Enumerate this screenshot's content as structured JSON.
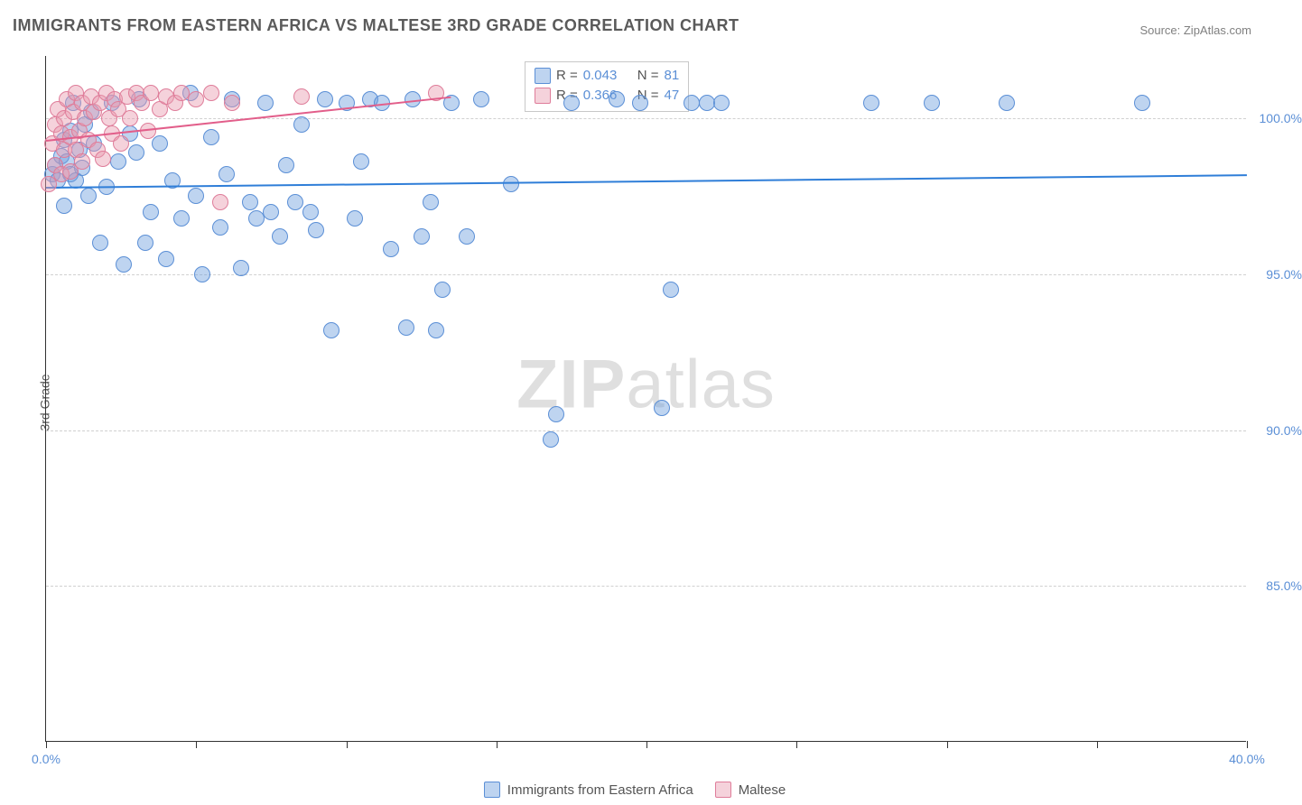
{
  "title": "IMMIGRANTS FROM EASTERN AFRICA VS MALTESE 3RD GRADE CORRELATION CHART",
  "source": "Source: ZipAtlas.com",
  "watermark_bold": "ZIP",
  "watermark_light": "atlas",
  "yaxis_title": "3rd Grade",
  "chart": {
    "type": "scatter",
    "xlim": [
      0,
      40
    ],
    "ylim": [
      80,
      102
    ],
    "x_ticks": [
      0,
      5,
      10,
      15,
      20,
      25,
      30,
      35,
      40
    ],
    "x_tick_labels": {
      "0": "0.0%",
      "40": "40.0%"
    },
    "y_gridlines": [
      85,
      90,
      95,
      100
    ],
    "y_tick_labels": {
      "85": "85.0%",
      "90": "90.0%",
      "95": "95.0%",
      "100": "100.0%"
    },
    "background_color": "#ffffff",
    "grid_color": "#d0d0d0",
    "axis_color": "#333333",
    "label_color": "#5b8fd6",
    "label_fontsize": 14,
    "marker_radius": 9,
    "marker_opacity": 0.55,
    "series": [
      {
        "name": "Immigrants from Eastern Africa",
        "color": "#6fa0de",
        "fill": "rgba(111,160,222,0.45)",
        "stroke": "#5b8fd6",
        "r": 0.043,
        "n": 81,
        "trend": {
          "x1": 0,
          "y1": 97.8,
          "x2": 40,
          "y2": 98.2,
          "color": "#2f7ed8",
          "width": 2
        },
        "points": [
          [
            0.2,
            98.2
          ],
          [
            0.3,
            98.5
          ],
          [
            0.4,
            98.0
          ],
          [
            0.5,
            98.8
          ],
          [
            0.6,
            99.3
          ],
          [
            0.6,
            97.2
          ],
          [
            0.7,
            98.6
          ],
          [
            0.8,
            98.2
          ],
          [
            0.8,
            99.6
          ],
          [
            0.9,
            100.5
          ],
          [
            1.0,
            98.0
          ],
          [
            1.1,
            99.0
          ],
          [
            1.2,
            98.4
          ],
          [
            1.3,
            99.8
          ],
          [
            1.4,
            97.5
          ],
          [
            1.5,
            100.2
          ],
          [
            1.6,
            99.2
          ],
          [
            1.8,
            96.0
          ],
          [
            2.0,
            97.8
          ],
          [
            2.2,
            100.5
          ],
          [
            2.4,
            98.6
          ],
          [
            2.6,
            95.3
          ],
          [
            2.8,
            99.5
          ],
          [
            3.0,
            98.9
          ],
          [
            3.1,
            100.6
          ],
          [
            3.3,
            96.0
          ],
          [
            3.5,
            97.0
          ],
          [
            3.8,
            99.2
          ],
          [
            4.0,
            95.5
          ],
          [
            4.2,
            98.0
          ],
          [
            4.5,
            96.8
          ],
          [
            4.8,
            100.8
          ],
          [
            5.0,
            97.5
          ],
          [
            5.2,
            95.0
          ],
          [
            5.5,
            99.4
          ],
          [
            5.8,
            96.5
          ],
          [
            6.0,
            98.2
          ],
          [
            6.2,
            100.6
          ],
          [
            6.5,
            95.2
          ],
          [
            6.8,
            97.3
          ],
          [
            7.0,
            96.8
          ],
          [
            7.3,
            100.5
          ],
          [
            7.5,
            97.0
          ],
          [
            7.8,
            96.2
          ],
          [
            8.0,
            98.5
          ],
          [
            8.3,
            97.3
          ],
          [
            8.5,
            99.8
          ],
          [
            8.8,
            97.0
          ],
          [
            9.0,
            96.4
          ],
          [
            9.3,
            100.6
          ],
          [
            9.5,
            93.2
          ],
          [
            10.0,
            100.5
          ],
          [
            10.3,
            96.8
          ],
          [
            10.5,
            98.6
          ],
          [
            10.8,
            100.6
          ],
          [
            11.2,
            100.5
          ],
          [
            11.5,
            95.8
          ],
          [
            12.0,
            93.3
          ],
          [
            12.2,
            100.6
          ],
          [
            12.5,
            96.2
          ],
          [
            12.8,
            97.3
          ],
          [
            13.0,
            93.2
          ],
          [
            13.2,
            94.5
          ],
          [
            13.5,
            100.5
          ],
          [
            14.0,
            96.2
          ],
          [
            14.5,
            100.6
          ],
          [
            15.5,
            97.9
          ],
          [
            16.8,
            89.7
          ],
          [
            17.0,
            90.5
          ],
          [
            17.5,
            100.5
          ],
          [
            19.0,
            100.6
          ],
          [
            19.8,
            100.5
          ],
          [
            20.5,
            90.7
          ],
          [
            20.8,
            94.5
          ],
          [
            21.5,
            100.5
          ],
          [
            22.0,
            100.5
          ],
          [
            22.5,
            100.5
          ],
          [
            27.5,
            100.5
          ],
          [
            29.5,
            100.5
          ],
          [
            32.0,
            100.5
          ],
          [
            36.5,
            100.5
          ]
        ]
      },
      {
        "name": "Maltese",
        "color": "#e89bb0",
        "fill": "rgba(232,155,176,0.45)",
        "stroke": "#df7d9a",
        "r": 0.366,
        "n": 47,
        "trend": {
          "x1": 0,
          "y1": 99.3,
          "x2": 13.5,
          "y2": 100.7,
          "color": "#e25e8a",
          "width": 2
        },
        "points": [
          [
            0.1,
            97.9
          ],
          [
            0.2,
            99.2
          ],
          [
            0.3,
            99.8
          ],
          [
            0.3,
            98.5
          ],
          [
            0.4,
            100.3
          ],
          [
            0.5,
            99.5
          ],
          [
            0.5,
            98.2
          ],
          [
            0.6,
            100.0
          ],
          [
            0.6,
            99.0
          ],
          [
            0.7,
            100.6
          ],
          [
            0.8,
            99.4
          ],
          [
            0.8,
            98.3
          ],
          [
            0.9,
            100.2
          ],
          [
            1.0,
            99.0
          ],
          [
            1.0,
            100.8
          ],
          [
            1.1,
            99.6
          ],
          [
            1.2,
            100.5
          ],
          [
            1.2,
            98.6
          ],
          [
            1.3,
            100.0
          ],
          [
            1.4,
            99.3
          ],
          [
            1.5,
            100.7
          ],
          [
            1.6,
            100.2
          ],
          [
            1.7,
            99.0
          ],
          [
            1.8,
            100.5
          ],
          [
            1.9,
            98.7
          ],
          [
            2.0,
            100.8
          ],
          [
            2.1,
            100.0
          ],
          [
            2.2,
            99.5
          ],
          [
            2.3,
            100.6
          ],
          [
            2.4,
            100.3
          ],
          [
            2.5,
            99.2
          ],
          [
            2.7,
            100.7
          ],
          [
            2.8,
            100.0
          ],
          [
            3.0,
            100.8
          ],
          [
            3.2,
            100.5
          ],
          [
            3.4,
            99.6
          ],
          [
            3.5,
            100.8
          ],
          [
            3.8,
            100.3
          ],
          [
            4.0,
            100.7
          ],
          [
            4.3,
            100.5
          ],
          [
            4.5,
            100.8
          ],
          [
            5.0,
            100.6
          ],
          [
            5.5,
            100.8
          ],
          [
            5.8,
            97.3
          ],
          [
            6.2,
            100.5
          ],
          [
            8.5,
            100.7
          ],
          [
            13.0,
            100.8
          ]
        ]
      }
    ]
  },
  "stat_box": {
    "rows": [
      {
        "color_fill": "rgba(111,160,222,0.45)",
        "color_stroke": "#5b8fd6",
        "r_label": "R =",
        "r_val": "0.043",
        "n_label": "N =",
        "n_val": "81"
      },
      {
        "color_fill": "rgba(232,155,176,0.45)",
        "color_stroke": "#df7d9a",
        "r_label": "R =",
        "r_val": "0.366",
        "n_label": "N =",
        "n_val": "47"
      }
    ]
  },
  "bottom_legend": [
    {
      "fill": "rgba(111,160,222,0.45)",
      "stroke": "#5b8fd6",
      "label": "Immigrants from Eastern Africa"
    },
    {
      "fill": "rgba(232,155,176,0.45)",
      "stroke": "#df7d9a",
      "label": "Maltese"
    }
  ]
}
